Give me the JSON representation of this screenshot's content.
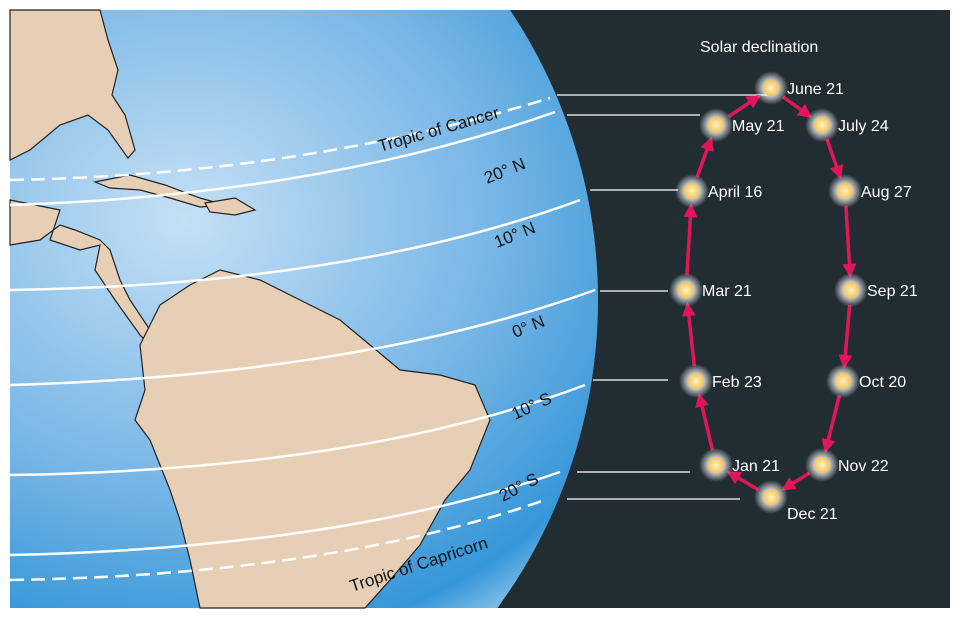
{
  "title": "Solar declination",
  "latitude_labels": {
    "tropic_cancer": "Tropic of Cancer",
    "n20": "20° N",
    "n10": "10° N",
    "eq": "0° N",
    "s10": "10° S",
    "s20": "20° S",
    "tropic_capricorn": "Tropic of Capricorn"
  },
  "dates": [
    {
      "label": "June 21"
    },
    {
      "label": "May 21"
    },
    {
      "label": "July 24"
    },
    {
      "label": "April 16"
    },
    {
      "label": "Aug 27"
    },
    {
      "label": "Mar 21"
    },
    {
      "label": "Sep 21"
    },
    {
      "label": "Feb 23"
    },
    {
      "label": "Oct 20"
    },
    {
      "label": "Jan 21"
    },
    {
      "label": "Nov 22"
    },
    {
      "label": "Dec 21"
    }
  ],
  "colors": {
    "space": "#222c33",
    "ocean": "#4a9fdc",
    "land": "#e6cfb4",
    "arrow": "#e0165a",
    "sun": "#f7d277"
  }
}
